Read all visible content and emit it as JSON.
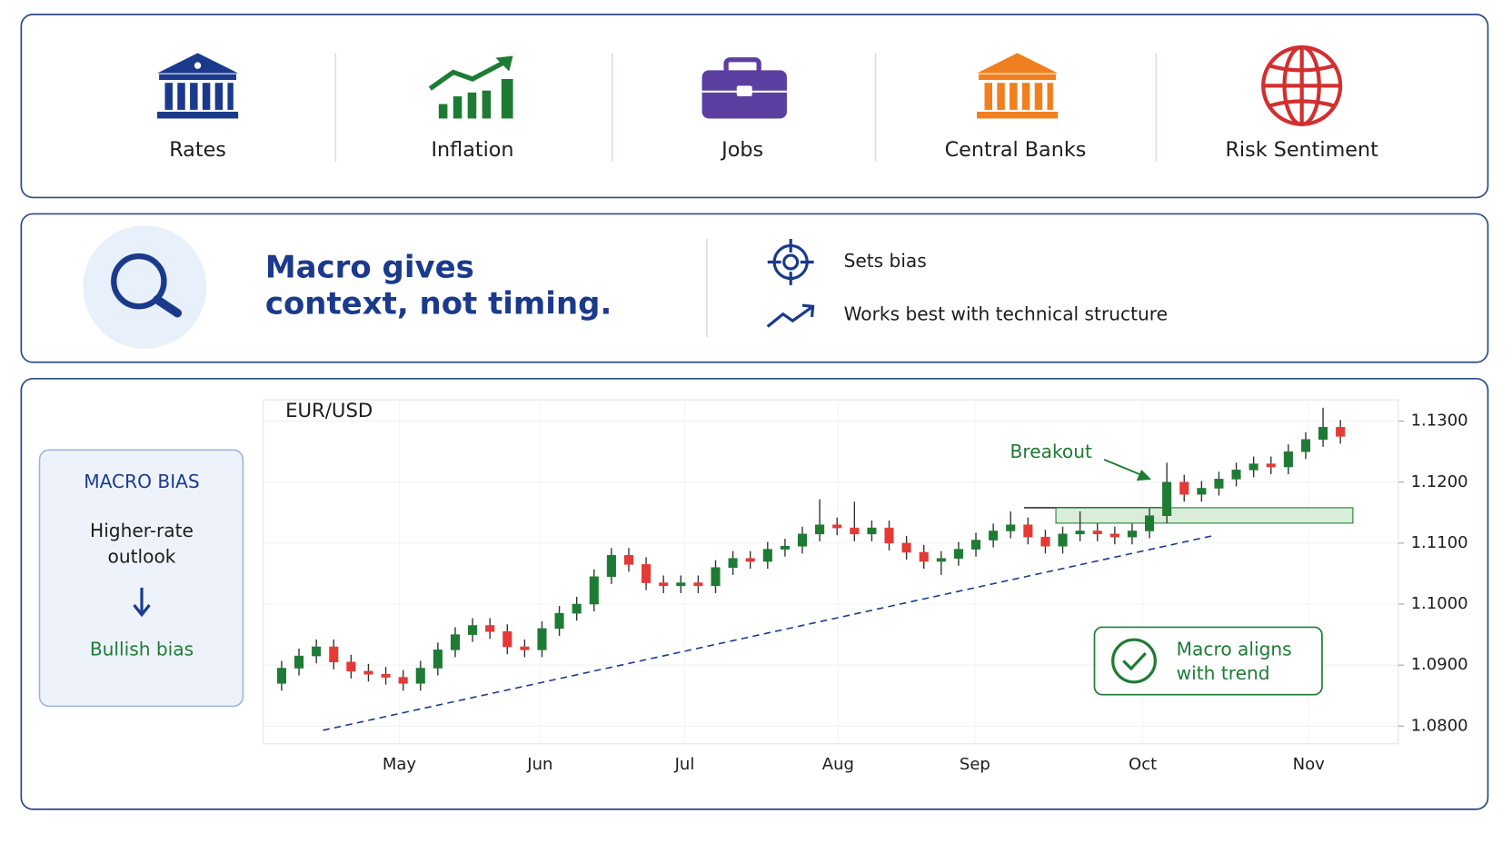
{
  "drivers": [
    "Rates",
    "Inflation",
    "Jobs",
    "Central Banks",
    "Risk Sentiment"
  ],
  "summary": {
    "headline": [
      "Macro gives",
      "context, not timing."
    ],
    "points": [
      "Sets bias",
      "Works best with technical structure"
    ]
  },
  "macro_bias": {
    "title": "MACRO BIAS",
    "outlook": [
      "Higher-rate",
      "outlook"
    ],
    "bias": "Bullish bias"
  },
  "chart_data": {
    "type": "candlestick",
    "title": "EUR/USD",
    "up_color": "#1e7b34",
    "down_color": "#e53935",
    "open": [
      1.087,
      1.0895,
      1.0915,
      1.093,
      1.0905,
      1.089,
      1.0885,
      1.088,
      1.087,
      1.0895,
      1.0925,
      1.095,
      1.0965,
      1.0955,
      1.093,
      1.0925,
      1.096,
      1.0985,
      1.1,
      1.1045,
      1.108,
      1.1065,
      1.1035,
      1.103,
      1.1035,
      1.103,
      1.106,
      1.1075,
      1.107,
      1.109,
      1.1095,
      1.1115,
      1.113,
      1.1125,
      1.1115,
      1.1125,
      1.11,
      1.1085,
      1.107,
      1.1075,
      1.109,
      1.1105,
      1.112,
      1.113,
      1.111,
      1.1095,
      1.1115,
      1.112,
      1.1115,
      1.111,
      1.112,
      1.1145,
      1.12,
      1.118,
      1.119,
      1.1205,
      1.122,
      1.123,
      1.1225,
      1.125,
      1.127,
      1.129
    ],
    "high": [
      1.0907,
      1.0927,
      1.0942,
      1.0942,
      1.0917,
      1.0902,
      1.0897,
      1.0892,
      1.0907,
      1.0937,
      1.0962,
      1.0977,
      1.0977,
      1.0967,
      1.0942,
      1.0972,
      1.0997,
      1.1012,
      1.1057,
      1.1092,
      1.1092,
      1.1077,
      1.1047,
      1.1047,
      1.1047,
      1.1072,
      1.1087,
      1.1087,
      1.1102,
      1.1107,
      1.1127,
      1.1172,
      1.1142,
      1.1168,
      1.1137,
      1.1137,
      1.1112,
      1.1097,
      1.1087,
      1.1102,
      1.1117,
      1.1132,
      1.1152,
      1.1142,
      1.1122,
      1.1127,
      1.1152,
      1.1132,
      1.1127,
      1.1132,
      1.1157,
      1.1232,
      1.1212,
      1.1202,
      1.1217,
      1.1232,
      1.1242,
      1.1242,
      1.1262,
      1.1282,
      1.1322,
      1.1302
    ],
    "low": [
      1.0858,
      1.0883,
      1.0903,
      1.0893,
      1.0878,
      1.0873,
      1.0868,
      1.0858,
      1.0858,
      1.0883,
      1.0913,
      1.0938,
      1.0943,
      1.0918,
      1.0913,
      1.0913,
      1.0948,
      1.0973,
      1.0988,
      1.1033,
      1.1053,
      1.1023,
      1.1018,
      1.1018,
      1.1018,
      1.1018,
      1.1048,
      1.1058,
      1.1058,
      1.1078,
      1.1083,
      1.1103,
      1.1113,
      1.1103,
      1.1103,
      1.1088,
      1.1073,
      1.1058,
      1.1048,
      1.1063,
      1.1078,
      1.1093,
      1.1108,
      1.1098,
      1.1083,
      1.1083,
      1.1103,
      1.1103,
      1.1098,
      1.1098,
      1.1108,
      1.1133,
      1.1168,
      1.1168,
      1.1178,
      1.1193,
      1.1208,
      1.1213,
      1.1213,
      1.1238,
      1.1258,
      1.1263
    ],
    "close": [
      1.0895,
      1.0915,
      1.093,
      1.0905,
      1.089,
      1.0885,
      1.088,
      1.087,
      1.0895,
      1.0925,
      1.095,
      1.0965,
      1.0955,
      1.093,
      1.0925,
      1.096,
      1.0985,
      1.1,
      1.1045,
      1.108,
      1.1065,
      1.1035,
      1.103,
      1.1035,
      1.103,
      1.106,
      1.1075,
      1.107,
      1.109,
      1.1095,
      1.1115,
      1.113,
      1.1125,
      1.1115,
      1.1125,
      1.11,
      1.1085,
      1.107,
      1.1075,
      1.109,
      1.1105,
      1.112,
      1.113,
      1.111,
      1.1095,
      1.1115,
      1.112,
      1.1115,
      1.111,
      1.112,
      1.1145,
      1.12,
      1.118,
      1.119,
      1.1205,
      1.122,
      1.123,
      1.1225,
      1.125,
      1.127,
      1.129,
      1.1275
    ],
    "xlim": [
      -1.06,
      64.33
    ],
    "xticks": [
      {
        "value": 6.78,
        "label": "May"
      },
      {
        "value": 14.89,
        "label": "Jun"
      },
      {
        "value": 23.22,
        "label": "Jul"
      },
      {
        "value": 32.06,
        "label": "Aug"
      },
      {
        "value": 39.94,
        "label": "Sep"
      },
      {
        "value": 49.61,
        "label": "Oct"
      },
      {
        "value": 59.17,
        "label": "Nov"
      }
    ],
    "ylim": [
      1.0771,
      1.1335
    ],
    "yticks": [
      {
        "value": 1.08,
        "label": "1.0800"
      },
      {
        "value": 1.09,
        "label": "1.0900"
      },
      {
        "value": 1.1,
        "label": "1.1000"
      },
      {
        "value": 1.11,
        "label": "1.1100"
      },
      {
        "value": 1.12,
        "label": "1.1200"
      },
      {
        "value": 1.13,
        "label": "1.1300"
      }
    ],
    "grid": true,
    "annotations": {
      "breakout": "Breakout",
      "callout": [
        "Macro aligns",
        "with trend"
      ]
    }
  }
}
